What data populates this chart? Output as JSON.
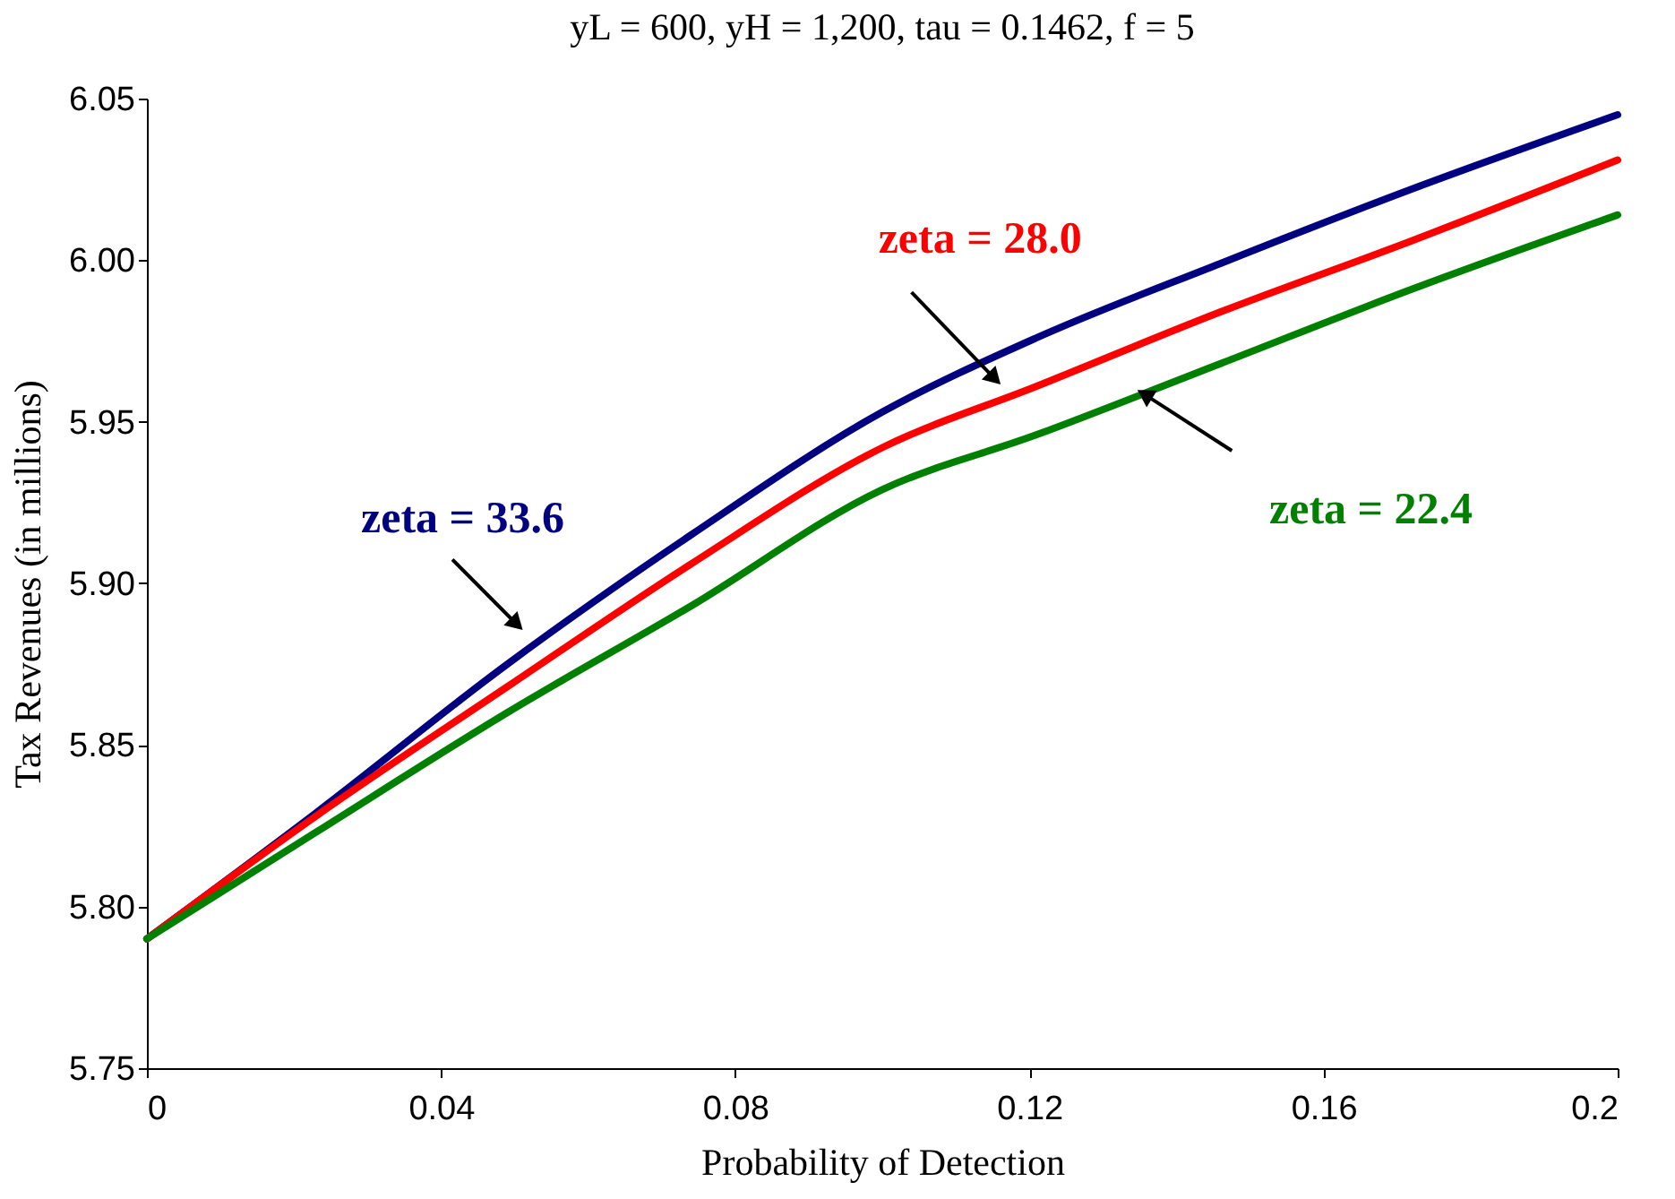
{
  "chart_data": {
    "type": "line",
    "title": "yL = 600, yH = 1,200, tau = 0.1462, f = 5",
    "xlabel": "Probability of Detection",
    "ylabel": "Tax Revenues (in millions)",
    "x": [
      0,
      0.023,
      0.049,
      0.074,
      0.1,
      0.121,
      0.146,
      0.172,
      0.2
    ],
    "series": [
      {
        "color": "#000080",
        "values": [
          5.79,
          5.829,
          5.875,
          5.915,
          5.953,
          5.976,
          5.999,
          6.022,
          6.045
        ]
      },
      {
        "color": "#ff0000",
        "values": [
          5.79,
          5.828,
          5.868,
          5.906,
          5.942,
          5.961,
          5.984,
          6.006,
          6.031
        ]
      },
      {
        "color": "#008000",
        "values": [
          5.79,
          5.823,
          5.86,
          5.893,
          5.929,
          5.946,
          5.968,
          5.991,
          6.014
        ]
      }
    ],
    "annotations": [
      {
        "text": "zeta = 33.6",
        "x": 0.05,
        "y": 5.888
      },
      {
        "text": "zeta = 28.0",
        "x": 0.115,
        "y": 5.964
      },
      {
        "text": "zeta = 22.4",
        "x": 0.136,
        "y": 5.958
      }
    ],
    "xlim": [
      0,
      0.2
    ],
    "xticks": [
      0,
      0.04,
      0.08,
      0.12,
      0.16,
      0.2
    ],
    "ylim": [
      5.75,
      6.05
    ],
    "yticks": [
      {
        "value": 5.75,
        "label": "5.75"
      },
      {
        "value": 5.8,
        "label": "5.80"
      },
      {
        "value": 5.85,
        "label": "5.85"
      },
      {
        "value": 5.9,
        "label": "5.90"
      },
      {
        "value": 5.95,
        "label": "5.95"
      },
      {
        "value": 6.0,
        "label": "6.00"
      },
      {
        "value": 6.05,
        "label": "6.05"
      }
    ],
    "grid": false,
    "marker": "none",
    "line_style": "solid"
  }
}
